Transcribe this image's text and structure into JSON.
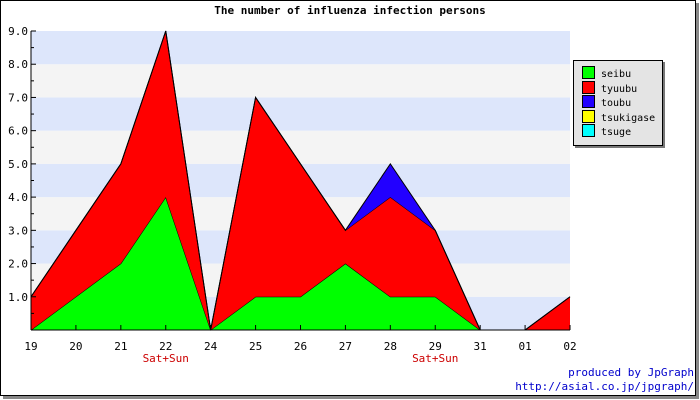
{
  "chart_data": {
    "type": "area",
    "stacked": true,
    "title": "The number of influenza infection persons",
    "categories": [
      "19",
      "20",
      "21",
      "22",
      "24",
      "25",
      "26",
      "27",
      "28",
      "29",
      "31",
      "01",
      "02"
    ],
    "weekend_label": "Sat+Sun",
    "weekend_categories": [
      "22",
      "29"
    ],
    "ylim": [
      0,
      9
    ],
    "yticks": [
      "1.0",
      "2.0",
      "3.0",
      "4.0",
      "5.0",
      "6.0",
      "7.0",
      "8.0",
      "9.0"
    ],
    "grid": "alternating horizontal bands",
    "legend_position": "right",
    "series": [
      {
        "name": "seibu",
        "color": "#00ff00",
        "values": [
          0,
          1,
          2,
          4,
          0,
          1,
          1,
          2,
          1,
          1,
          0,
          0,
          0
        ]
      },
      {
        "name": "tyuubu",
        "color": "#ff0000",
        "values": [
          1,
          2,
          3,
          5,
          0,
          6,
          4,
          1,
          3,
          2,
          0,
          0,
          1
        ]
      },
      {
        "name": "toubu",
        "color": "#2200ff",
        "values": [
          0,
          0,
          0,
          0,
          0,
          0,
          0,
          0,
          1,
          0,
          0,
          0,
          0
        ]
      },
      {
        "name": "tsukigase",
        "color": "#ffff00",
        "values": [
          0,
          0,
          0,
          0,
          0,
          0,
          0,
          0,
          0,
          0,
          0,
          0,
          0
        ]
      },
      {
        "name": "tsuge",
        "color": "#00ffff",
        "values": [
          0,
          0,
          0,
          0,
          0,
          0,
          0,
          0,
          0,
          0,
          0,
          0,
          0
        ]
      }
    ]
  },
  "footer": {
    "credit_line1": "produced by JpGraph",
    "credit_line2": "http://asial.co.jp/jpgraph/"
  }
}
